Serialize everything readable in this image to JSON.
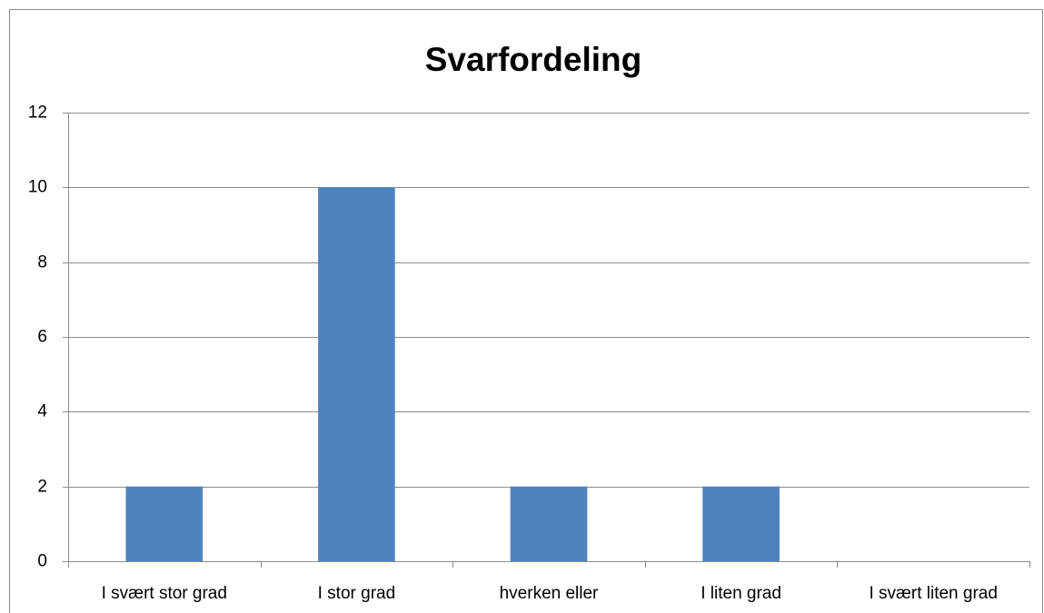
{
  "chart_data": {
    "type": "bar",
    "title": "Svarfordeling",
    "categories": [
      "I svært stor grad",
      "I stor grad",
      "hverken eller",
      "I liten grad",
      "I svært liten grad"
    ],
    "values": [
      2,
      10,
      2,
      2,
      0
    ],
    "color": "#4f81bd",
    "ylim": [
      0,
      12
    ],
    "yticks": [
      0,
      2,
      4,
      6,
      8,
      10,
      12
    ],
    "grid": true
  }
}
